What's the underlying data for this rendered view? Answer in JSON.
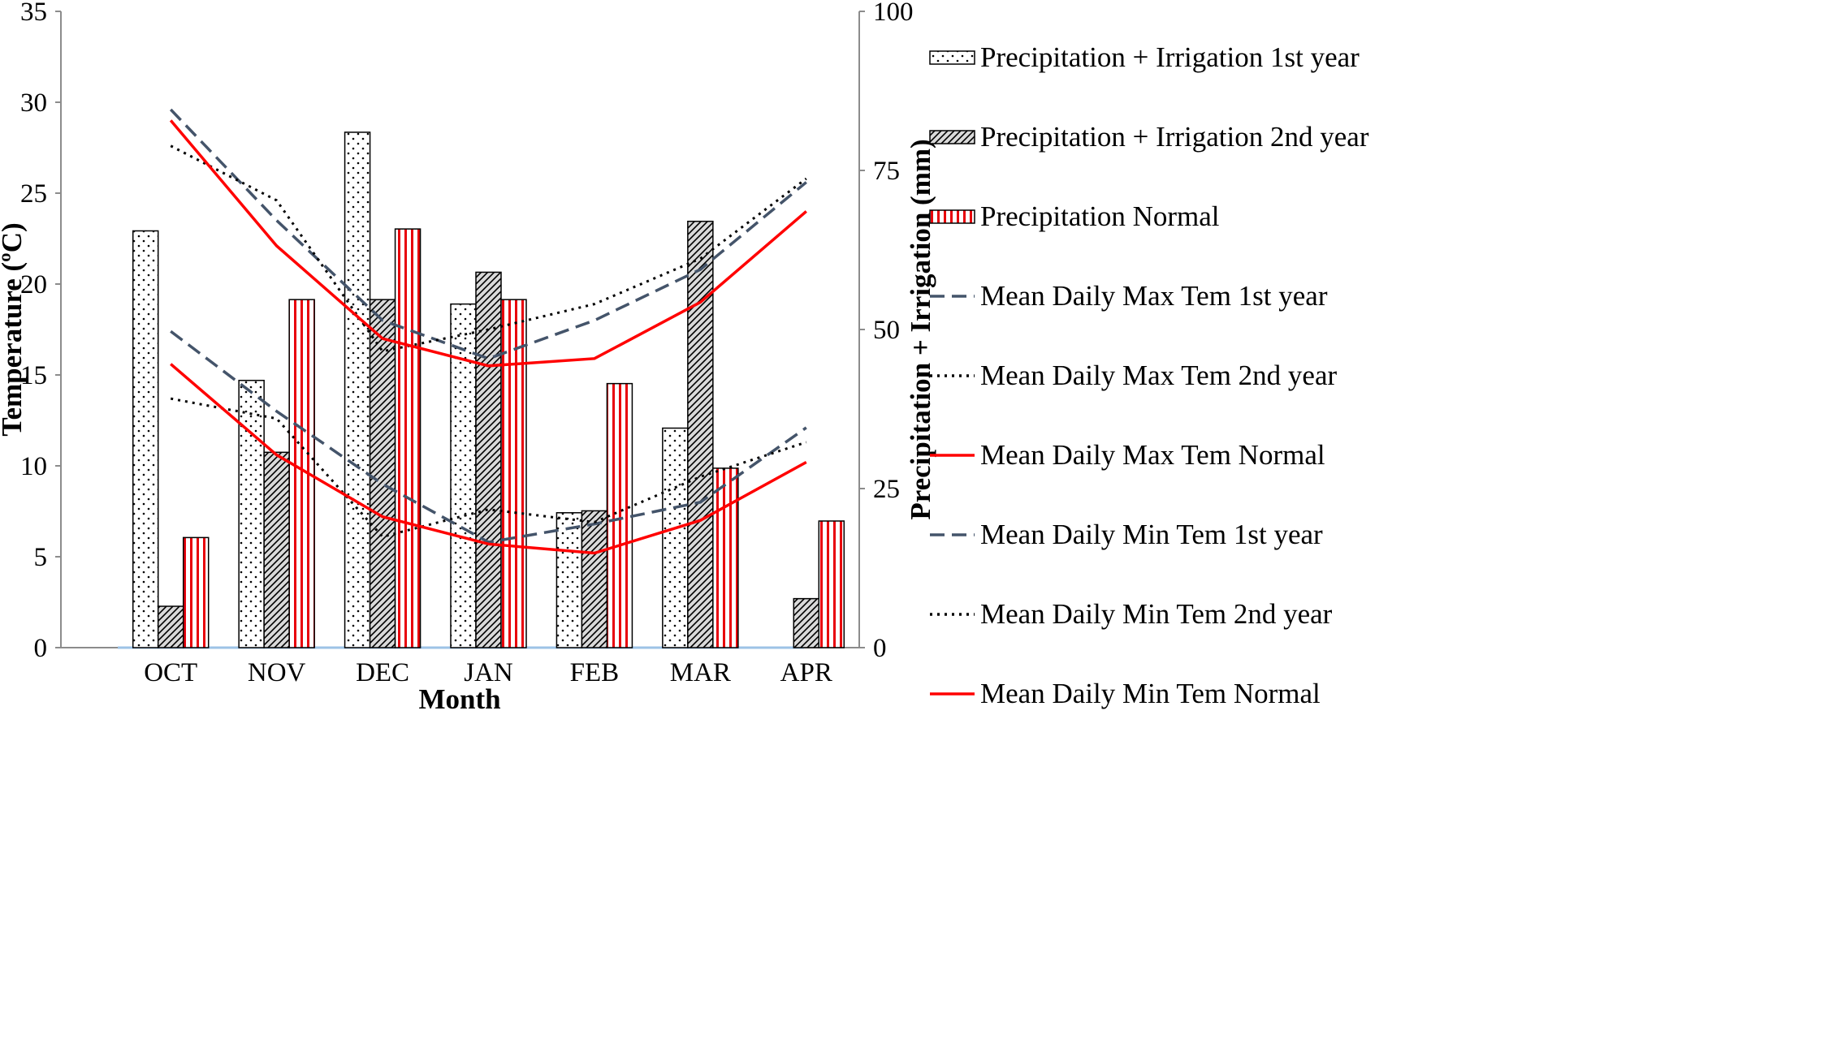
{
  "chart_data": {
    "type": "bar+line",
    "xlabel": "Month",
    "ylabel_left": "Temperature (ºC)",
    "ylabel_right": "Precipitation + Irrigation (mm)",
    "categories": [
      "OCT",
      "NOV",
      "DEC",
      "JAN",
      "FEB",
      "MAR",
      "APR"
    ],
    "y_left": {
      "lim": [
        0,
        35
      ],
      "ticks": [
        "0",
        "5",
        "10",
        "15",
        "20",
        "25",
        "30",
        "35"
      ]
    },
    "y_right": {
      "lim": [
        0,
        100
      ],
      "ticks": [
        "0",
        "25",
        "50",
        "75",
        "100"
      ]
    },
    "bar_series": [
      {
        "name": "Precipitation + Irrigation 1st year",
        "pattern": "dots",
        "values": [
          65.5,
          42.0,
          81.0,
          54.0,
          21.2,
          34.5,
          0
        ]
      },
      {
        "name": "Precipitation + Irrigation 2nd year",
        "pattern": "diagonal",
        "values": [
          6.5,
          30.7,
          54.7,
          59.0,
          21.5,
          67.0,
          7.7
        ]
      },
      {
        "name": "Precipitation Normal",
        "pattern": "vertical-red",
        "values": [
          17.3,
          54.7,
          65.8,
          54.7,
          41.5,
          28.2,
          19.9
        ]
      }
    ],
    "line_series": [
      {
        "name": "Mean Daily Max Tem 1st year",
        "style": "dashed",
        "color": "#44546a",
        "values": [
          29.6,
          23.5,
          18.0,
          15.9,
          18.0,
          20.8,
          25.6
        ]
      },
      {
        "name": "Mean Daily Max Tem 2nd year",
        "style": "dotted",
        "color": "#000000",
        "values": [
          27.6,
          24.6,
          16.3,
          17.5,
          18.9,
          21.4,
          25.8
        ]
      },
      {
        "name": "Mean Daily Max Tem Normal",
        "style": "solid",
        "color": "#ff0000",
        "values": [
          29.0,
          22.1,
          17.0,
          15.5,
          15.9,
          19.0,
          24.0
        ]
      },
      {
        "name": "Mean Daily Min Tem 1st year",
        "style": "dashed",
        "color": "#44546a",
        "values": [
          17.4,
          13.0,
          9.0,
          5.8,
          6.8,
          8.0,
          12.1
        ]
      },
      {
        "name": "Mean Daily Min Tem 2nd year",
        "style": "dotted",
        "color": "#000000",
        "values": [
          13.7,
          12.6,
          6.1,
          7.6,
          6.9,
          9.4,
          11.3
        ]
      },
      {
        "name": "Mean Daily Min Tem Normal",
        "style": "solid",
        "color": "#ff0000",
        "values": [
          15.6,
          10.6,
          7.2,
          5.7,
          5.2,
          7.0,
          10.2
        ]
      }
    ]
  }
}
